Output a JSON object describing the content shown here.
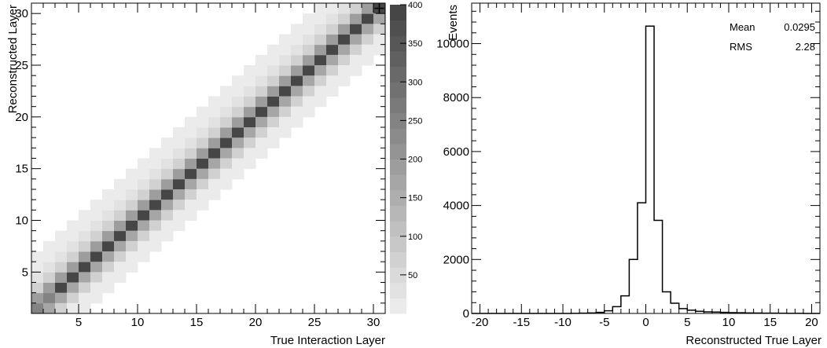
{
  "chart_data": [
    {
      "type": "heatmap",
      "title": "",
      "xlabel": "True Interaction Layer",
      "ylabel": "Reconstructed Layer",
      "xlim": [
        1,
        31
      ],
      "ylim": [
        1,
        31
      ],
      "x_ticks": [
        5,
        10,
        15,
        20,
        25,
        30
      ],
      "y_ticks": [
        5,
        10,
        15,
        20,
        25,
        30
      ],
      "colorbar": {
        "range": [
          0,
          400
        ],
        "levels": 20,
        "ticks": [
          50,
          100,
          150,
          200,
          250,
          300,
          350,
          400
        ]
      },
      "diagonal_peak": 400,
      "offdiag_weights": [
        {
          "offset": 1,
          "value": 200
        },
        {
          "offset": -1,
          "value": 180
        },
        {
          "offset": 2,
          "value": 80
        },
        {
          "offset": -2,
          "value": 70
        },
        {
          "offset": 3,
          "value": 40
        },
        {
          "offset": -3,
          "value": 20
        },
        {
          "offset": 4,
          "value": 20
        },
        {
          "offset": -4,
          "value": 12
        },
        {
          "offset": 5,
          "value": 10
        }
      ],
      "marker": {
        "x": 30,
        "y": 30,
        "symbol": "+"
      },
      "grid": false,
      "legend": "none"
    },
    {
      "type": "step",
      "title": "",
      "xlabel": "Reconstructed True Layer",
      "ylabel": "Events",
      "xlim": [
        -21,
        21
      ],
      "ylim": [
        0,
        11500
      ],
      "x_ticks": [
        -20,
        -15,
        -10,
        -5,
        0,
        5,
        10,
        15,
        20
      ],
      "y_ticks": [
        0,
        2000,
        4000,
        6000,
        8000,
        10000
      ],
      "bin_edges": [
        -21,
        -20,
        -19,
        -18,
        -17,
        -16,
        -15,
        -14,
        -13,
        -12,
        -11,
        -10,
        -9,
        -8,
        -7,
        -6,
        -5,
        -4,
        -3,
        -2,
        -1,
        0,
        1,
        2,
        3,
        4,
        5,
        6,
        7,
        8,
        9,
        10,
        11,
        12,
        13,
        14,
        15,
        16,
        17,
        18,
        19,
        20,
        21
      ],
      "bin_values": [
        0,
        0,
        0,
        0,
        0,
        0,
        0,
        0,
        0,
        0,
        0,
        0,
        5,
        10,
        20,
        40,
        100,
        250,
        650,
        2000,
        4100,
        10650,
        3450,
        800,
        380,
        180,
        120,
        80,
        60,
        50,
        40,
        30,
        25,
        20,
        15,
        12,
        10,
        8,
        5,
        3,
        0,
        0
      ],
      "stats": [
        {
          "label": "Mean",
          "value": "0.0295"
        },
        {
          "label": "RMS",
          "value": "2.28"
        }
      ],
      "grid": false,
      "legend": "none"
    }
  ]
}
